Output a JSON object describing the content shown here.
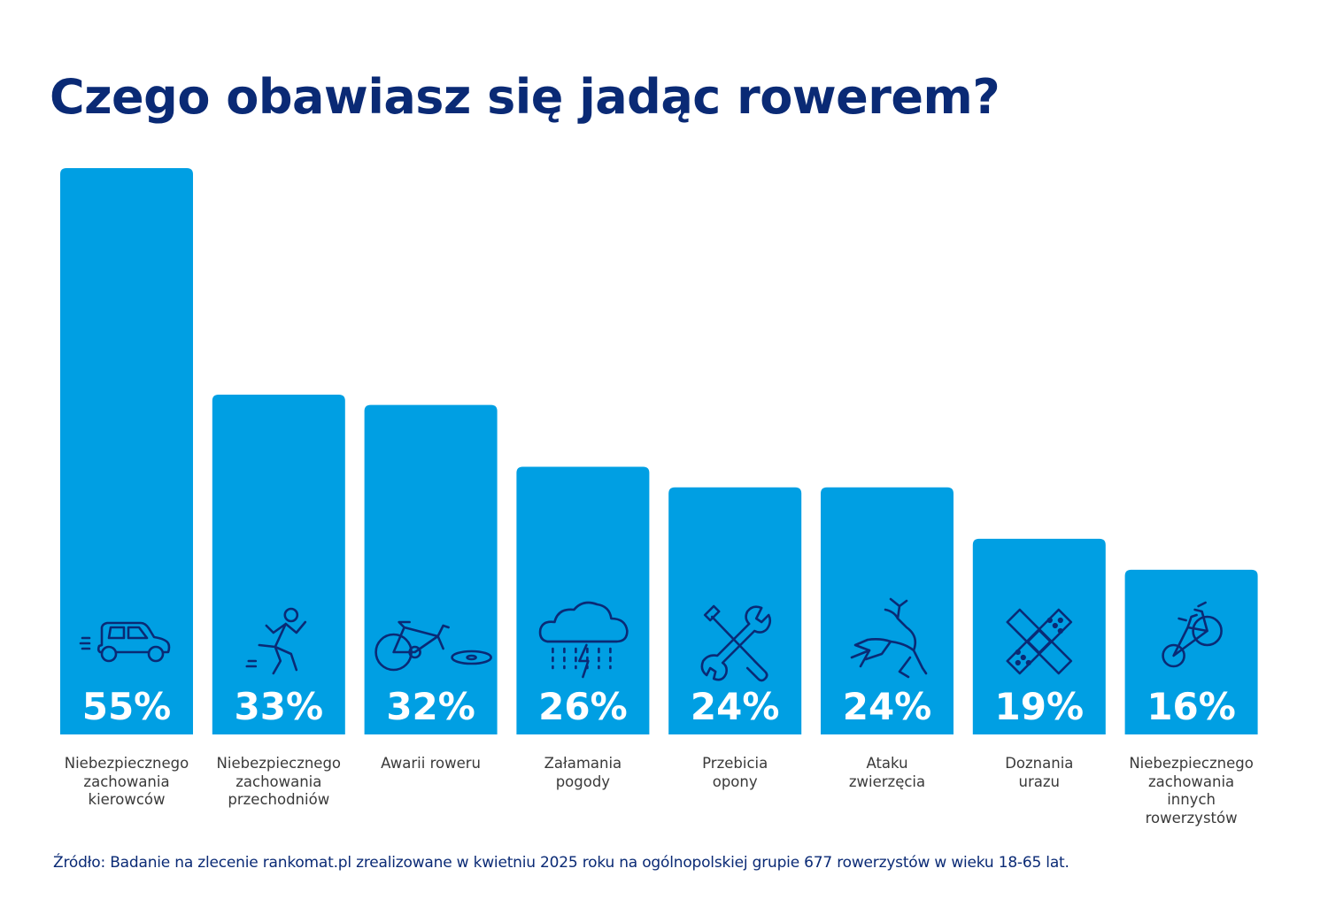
{
  "title": "Czego obawiasz się jadąc rowerem?",
  "source": "Źródło: Badanie na zlecenie rankomat.pl zrealizowane w kwietniu 2025 roku na ogólnopolskiej grupie 677 rowerzystów w wieku 18-65 lat.",
  "colors": {
    "bar": "#009fe3",
    "title": "#0a2a75",
    "icon": "#0a2a75",
    "value_text": "#ffffff"
  },
  "chart_data": {
    "type": "bar",
    "categories": [
      "Niebezpiecznego zachowania kierowców",
      "Niebezpiecznego zachowania przechodniów",
      "Awarii roweru",
      "Załamania pogody",
      "Przebicia opony",
      "Ataku zwierzęcia",
      "Doznania urazu",
      "Niebezpiecznego zachowania innych rowerzystów"
    ],
    "category_labels": [
      "Niebezpiecznego\nzachowania\nkierowców",
      "Niebezpiecznego\nzachowania\nprzechodniów",
      "Awarii roweru",
      "Załamania\npogody",
      "Przebicia\nopony",
      "Ataku\nzwierzęcia",
      "Doznania\nurazu",
      "Niebezpiecznego\nzachowania\ninnych\nrowerzystów"
    ],
    "values": [
      55,
      33,
      32,
      26,
      24,
      24,
      19,
      16
    ],
    "value_labels": [
      "55%",
      "33%",
      "32%",
      "26%",
      "24%",
      "24%",
      "19%",
      "16%"
    ],
    "icons": [
      "car-icon",
      "running-pedestrian-icon",
      "broken-bike-icon",
      "storm-cloud-icon",
      "wrench-screwdriver-icon",
      "deer-icon",
      "bandage-icon",
      "cyclist-icon"
    ],
    "unit": "%",
    "ylim": [
      0,
      55
    ],
    "grid": false,
    "legend": "none"
  }
}
